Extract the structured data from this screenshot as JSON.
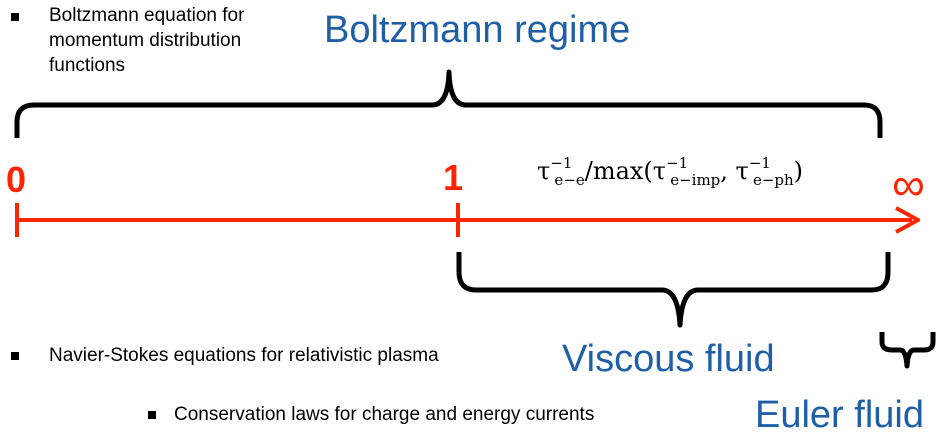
{
  "top_bullet": {
    "lines": [
      "Boltzmann equation for",
      "momentum distribution",
      "functions"
    ]
  },
  "regimes": {
    "boltzmann": "Boltzmann regime",
    "viscous": "Viscous fluid",
    "euler": "Euler fluid"
  },
  "axis": {
    "label_zero": "0",
    "label_one": "1",
    "label_infinity": "∞",
    "formula": {
      "tau": "τ",
      "sup": "−1",
      "sub_ee": "e−e",
      "max_prefix": "/max(",
      "sub_imp": "e−imp",
      "sep": ", ",
      "sub_ph": "e−ph",
      "close": ")"
    }
  },
  "bottom_bullets": {
    "navier": "Navier-Stokes equations for relativistic plasma",
    "conservation": "Conservation laws for charge and energy currents"
  },
  "colors": {
    "axis": "#ff2400",
    "regime_text": "#1f5fa8",
    "brace": "#000000"
  }
}
